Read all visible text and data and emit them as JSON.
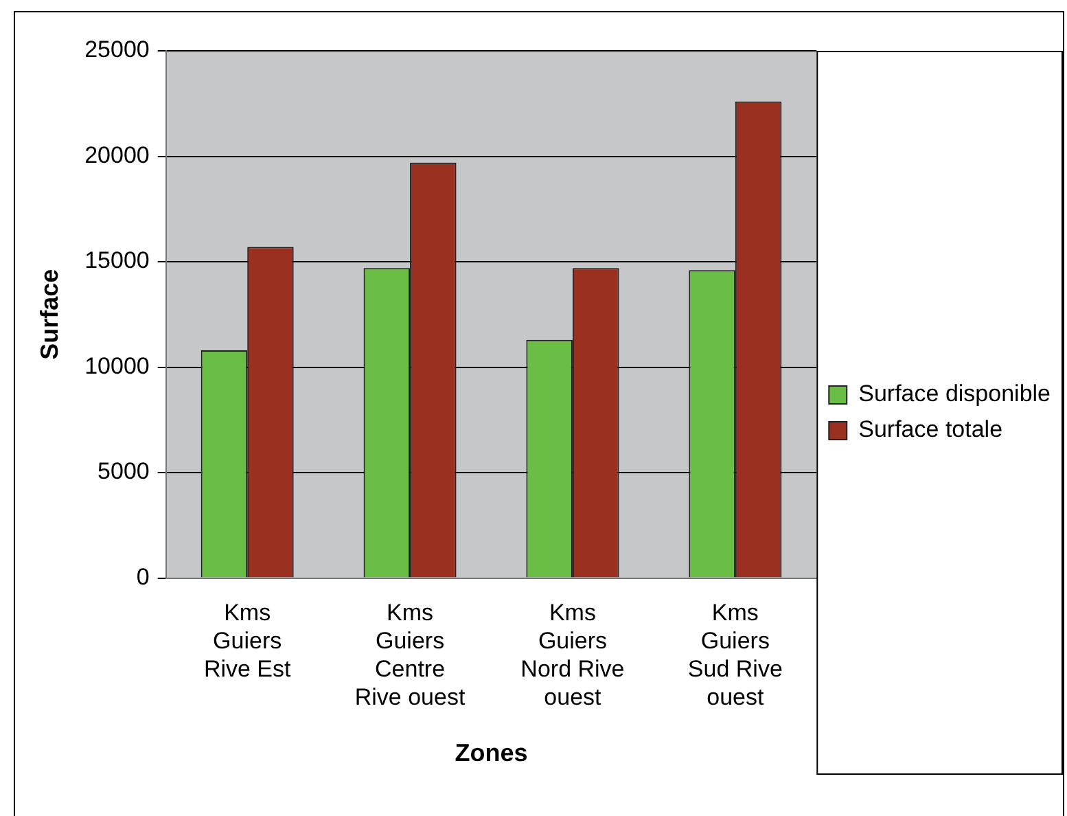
{
  "chart_data": {
    "type": "bar",
    "xlabel": "Zones",
    "ylabel": "Surface",
    "categories": [
      "Kms Guiers Rive Est",
      "Kms Guiers Centre Rive ouest",
      "Kms Guiers Nord Rive ouest",
      "Kms Guiers Sud Rive ouest"
    ],
    "series": [
      {
        "name": "Surface disponible",
        "color": "#6abd45",
        "values": [
          10800,
          14700,
          11300,
          14600
        ]
      },
      {
        "name": "Surface totale",
        "color": "#993020",
        "values": [
          15700,
          19700,
          14700,
          22600
        ]
      }
    ],
    "ylim": [
      0,
      25000
    ],
    "yticks": [
      0,
      5000,
      10000,
      15000,
      20000,
      25000
    ],
    "grid": "y",
    "legend": "right"
  }
}
